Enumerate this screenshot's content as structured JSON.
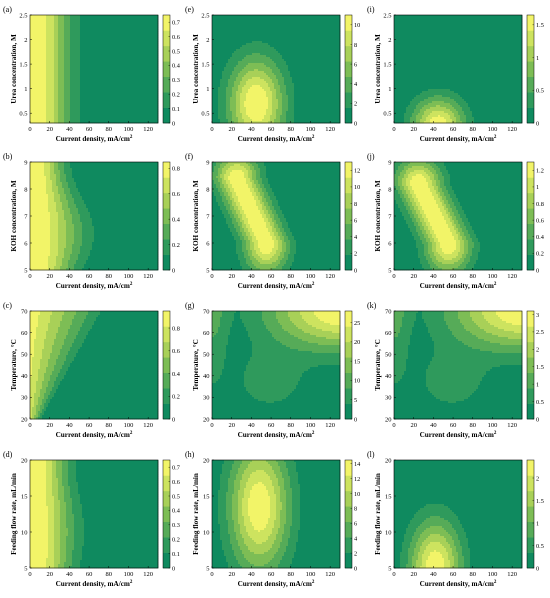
{
  "colors": {
    "c0": "#0f8a5f",
    "c1": "#2f9a5c",
    "c2": "#56ab58",
    "c3": "#7dbd55",
    "c4": "#a8d058",
    "c5": "#cde35f",
    "c6": "#f2f468"
  },
  "chart_data": [
    {
      "id": "a",
      "panel_label": "(a)",
      "type": "heatmap",
      "xlabel": "Current density, mA/cm",
      "xlabel_sup": "2",
      "ylabel": "Urea concentration, M",
      "xlim": [
        0,
        130
      ],
      "ylim": [
        0.3,
        2.5
      ],
      "xticks": [
        0,
        20,
        40,
        60,
        80,
        100,
        120
      ],
      "yticks": [
        0.5,
        1,
        1.5,
        2,
        2.5
      ],
      "ytick_labels": [
        "0.5",
        "1",
        "1.5",
        "2",
        "2.5"
      ],
      "colorbar": {
        "min": 0,
        "max": 0.75,
        "ticks": [
          0,
          0.1,
          0.2,
          0.3,
          0.4,
          0.5,
          0.6,
          0.7
        ]
      },
      "field": {
        "kind": "band",
        "peak_x": 6,
        "width": 32,
        "y_mod": 0.0,
        "max": 0.72,
        "decay_to": 0.0
      }
    },
    {
      "id": "e",
      "panel_label": "(e)",
      "type": "heatmap",
      "xlabel": "Current density, mA/cm",
      "xlabel_sup": "2",
      "ylabel": "Urea concentration, M",
      "xlim": [
        0,
        130
      ],
      "ylim": [
        0.3,
        2.5
      ],
      "xticks": [
        0,
        20,
        40,
        60,
        80,
        100,
        120
      ],
      "yticks": [
        0.5,
        1,
        1.5,
        2,
        2.5
      ],
      "ytick_labels": [
        "0.5",
        "1",
        "1.5",
        "2",
        "2.5"
      ],
      "colorbar": {
        "min": 0,
        "max": 11,
        "ticks": [
          0,
          2,
          4,
          6,
          8,
          10
        ]
      },
      "field": {
        "kind": "blob",
        "cx": 45,
        "cy": 0.7,
        "sx": 28,
        "sy": 0.9,
        "max": 11.2
      }
    },
    {
      "id": "i",
      "panel_label": "(i)",
      "type": "heatmap",
      "xlabel": "Current density, mA/cm",
      "xlabel_sup": "2",
      "ylabel": "Urea concentration, M",
      "xlim": [
        0,
        130
      ],
      "ylim": [
        0.3,
        2.5
      ],
      "xticks": [
        0,
        20,
        40,
        60,
        80,
        100,
        120
      ],
      "yticks": [
        0.5,
        1,
        1.5,
        2,
        2.5
      ],
      "ytick_labels": [
        "0.5",
        "1",
        "1.5",
        "2",
        "2.5"
      ],
      "colorbar": {
        "min": 0,
        "max": 1.65,
        "ticks": [
          0,
          0.5,
          1,
          1.5
        ]
      },
      "field": {
        "kind": "blob",
        "cx": 45,
        "cy": 0.25,
        "sx": 26,
        "sy": 0.55,
        "max": 1.6
      }
    },
    {
      "id": "b",
      "panel_label": "(b)",
      "type": "heatmap",
      "xlabel": "Current density, mA/cm",
      "xlabel_sup": "2",
      "ylabel": "KOH concentration, M",
      "xlim": [
        0,
        130
      ],
      "ylim": [
        5,
        9
      ],
      "xticks": [
        0,
        20,
        40,
        60,
        80,
        100,
        120
      ],
      "yticks": [
        5,
        6,
        7,
        8,
        9
      ],
      "ytick_labels": [
        "5",
        "6",
        "7",
        "8",
        "9"
      ],
      "colorbar": {
        "min": 0,
        "max": 0.85,
        "ticks": [
          0,
          0.2,
          0.4,
          0.6,
          0.8
        ]
      },
      "field": {
        "kind": "band",
        "peak_x": 6,
        "width": 34,
        "y_mod": 0.25,
        "max": 0.82,
        "decay_to": 0.0
      }
    },
    {
      "id": "f",
      "panel_label": "(f)",
      "type": "heatmap",
      "xlabel": "Current density, mA/cm",
      "xlabel_sup": "2",
      "ylabel": "KOH concentration, M",
      "xlim": [
        0,
        130
      ],
      "ylim": [
        5,
        9
      ],
      "xticks": [
        0,
        20,
        40,
        60,
        80,
        100,
        120
      ],
      "yticks": [
        5,
        6,
        7,
        8,
        9
      ],
      "ytick_labels": [
        "5",
        "6",
        "7",
        "8",
        "9"
      ],
      "colorbar": {
        "min": 0,
        "max": 13,
        "ticks": [
          0,
          2,
          4,
          6,
          8,
          10,
          12
        ]
      },
      "field": {
        "kind": "ridge",
        "x0": 25,
        "y0": 8.4,
        "x1": 55,
        "y1": 6.0,
        "sx": 22,
        "max": 12.8
      }
    },
    {
      "id": "j",
      "panel_label": "(j)",
      "type": "heatmap",
      "xlabel": "Current density, mA/cm",
      "xlabel_sup": "2",
      "ylabel": "KOH concentration, M",
      "xlim": [
        0,
        130
      ],
      "ylim": [
        5,
        9
      ],
      "xticks": [
        0,
        20,
        40,
        60,
        80,
        100,
        120
      ],
      "yticks": [
        5,
        6,
        7,
        8,
        9
      ],
      "ytick_labels": [
        "5",
        "6",
        "7",
        "8",
        "9"
      ],
      "colorbar": {
        "min": 0,
        "max": 1.3,
        "ticks": [
          0,
          0.2,
          0.4,
          0.6,
          0.8,
          1,
          1.2
        ]
      },
      "field": {
        "kind": "ridge",
        "x0": 25,
        "y0": 8.2,
        "x1": 55,
        "y1": 6.0,
        "sx": 23,
        "max": 1.28
      }
    },
    {
      "id": "c",
      "panel_label": "(c)",
      "type": "heatmap",
      "xlabel": "Current density, mA/cm",
      "xlabel_sup": "2",
      "ylabel": "Temperature, °C",
      "xlim": [
        0,
        130
      ],
      "ylim": [
        20,
        70
      ],
      "xticks": [
        0,
        20,
        40,
        60,
        80,
        100,
        120
      ],
      "yticks": [
        20,
        30,
        40,
        50,
        60,
        70
      ],
      "ytick_labels": [
        "20",
        "30",
        "40",
        "50",
        "60",
        "70"
      ],
      "colorbar": {
        "min": 0,
        "max": 0.95,
        "ticks": [
          0,
          0.2,
          0.4,
          0.6,
          0.8
        ]
      },
      "field": {
        "kind": "tilt",
        "max": 0.92
      }
    },
    {
      "id": "g",
      "panel_label": "(g)",
      "type": "heatmap",
      "xlabel": "Current density, mA/cm",
      "xlabel_sup": "2",
      "ylabel": "Temperature, °C",
      "xlim": [
        0,
        130
      ],
      "ylim": [
        20,
        70
      ],
      "xticks": [
        0,
        20,
        40,
        60,
        80,
        100,
        120
      ],
      "yticks": [
        20,
        30,
        40,
        50,
        60,
        70
      ],
      "ytick_labels": [
        "20",
        "30",
        "40",
        "50",
        "60",
        "70"
      ],
      "colorbar": {
        "min": 0,
        "max": 28,
        "ticks": [
          0,
          5,
          10,
          15,
          20,
          25
        ]
      },
      "field": {
        "kind": "corner",
        "max": 27.5
      }
    },
    {
      "id": "k",
      "panel_label": "(k)",
      "type": "heatmap",
      "xlabel": "Current density, mA/cm",
      "xlabel_sup": "2",
      "ylabel": "Temperature, °C",
      "xlim": [
        0,
        130
      ],
      "ylim": [
        20,
        70
      ],
      "xticks": [
        0,
        20,
        40,
        60,
        80,
        100,
        120
      ],
      "yticks": [
        20,
        30,
        40,
        50,
        60,
        70
      ],
      "ytick_labels": [
        "20",
        "30",
        "40",
        "50",
        "60",
        "70"
      ],
      "colorbar": {
        "min": 0,
        "max": 3.1,
        "ticks": [
          0,
          0.5,
          1,
          1.5,
          2,
          2.5,
          3
        ]
      },
      "field": {
        "kind": "corner",
        "max": 3.05
      }
    },
    {
      "id": "d",
      "panel_label": "(d)",
      "type": "heatmap",
      "xlabel": "Current density, mA/cm",
      "xlabel_sup": "2",
      "ylabel": "Feeding flow rate, mL/min",
      "xlim": [
        0,
        130
      ],
      "ylim": [
        5,
        20
      ],
      "xticks": [
        0,
        20,
        40,
        60,
        80,
        100,
        120
      ],
      "yticks": [
        5,
        10,
        15,
        20
      ],
      "ytick_labels": [
        "5",
        "10",
        "15",
        "20"
      ],
      "colorbar": {
        "min": 0,
        "max": 0.75,
        "ticks": [
          0,
          0.1,
          0.2,
          0.3,
          0.4,
          0.5,
          0.6,
          0.7
        ]
      },
      "field": {
        "kind": "band",
        "peak_x": 6,
        "width": 32,
        "y_mod": 0.1,
        "max": 0.72,
        "decay_to": 0.0
      }
    },
    {
      "id": "h",
      "panel_label": "(h)",
      "type": "heatmap",
      "xlabel": "Current density, mA/cm",
      "xlabel_sup": "2",
      "ylabel": "Feeding flow rate, mL/min",
      "xlim": [
        0,
        130
      ],
      "ylim": [
        5,
        20
      ],
      "xticks": [
        0,
        20,
        40,
        60,
        80,
        100,
        120
      ],
      "yticks": [
        5,
        10,
        15,
        20
      ],
      "ytick_labels": [
        "5",
        "10",
        "15",
        "20"
      ],
      "colorbar": {
        "min": 0,
        "max": 14.5,
        "ticks": [
          0,
          2,
          4,
          6,
          8,
          10,
          12,
          14
        ]
      },
      "field": {
        "kind": "blob",
        "cx": 48,
        "cy": 13.5,
        "sx": 30,
        "sy": 9,
        "max": 14.3
      }
    },
    {
      "id": "l",
      "panel_label": "(l)",
      "type": "heatmap",
      "xlabel": "Current density, mA/cm",
      "xlabel_sup": "2",
      "ylabel": "Feeding flow rate, mL/min",
      "xlim": [
        0,
        130
      ],
      "ylim": [
        5,
        20
      ],
      "xticks": [
        0,
        20,
        40,
        60,
        80,
        100,
        120
      ],
      "yticks": [
        5,
        10,
        15,
        20
      ],
      "ytick_labels": [
        "5",
        "10",
        "15",
        "20"
      ],
      "colorbar": {
        "min": 0,
        "max": 2.4,
        "ticks": [
          0,
          0.5,
          1,
          1.5,
          2
        ]
      },
      "field": {
        "kind": "blob",
        "cx": 42,
        "cy": 5.0,
        "sx": 26,
        "sy": 6.5,
        "max": 2.35
      }
    }
  ]
}
